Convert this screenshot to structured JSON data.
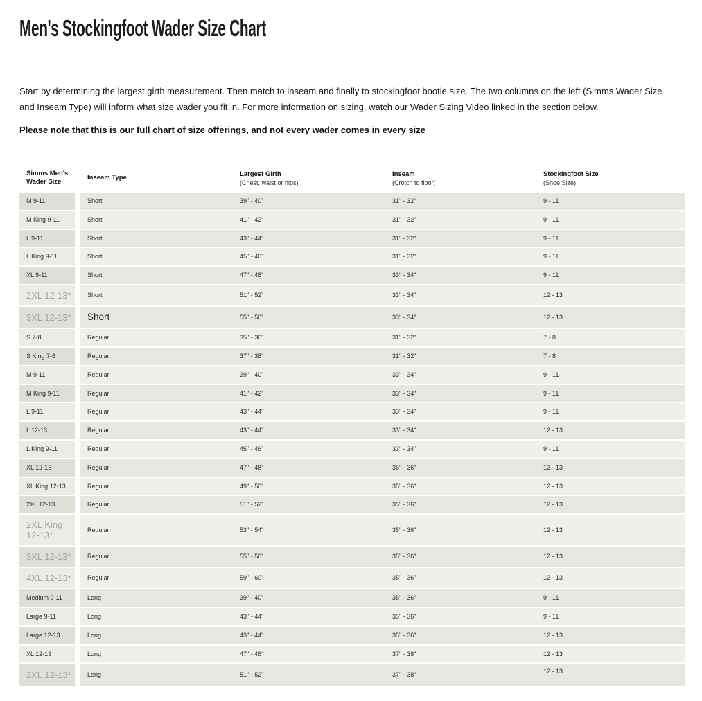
{
  "page": {
    "title": "Men's Stockingfoot Wader Size Chart",
    "intro": "Start by determining the largest girth measurement. Then match to inseam and finally to stockingfoot bootie size. The two columns on the left (Simms Wader Size and Inseam Type) will inform what size wader you fit in. For more information on sizing, watch our Wader Sizing Video linked in the section below.",
    "note": "Please note that this is our full chart of size offerings, and not every wader comes in every size"
  },
  "colors": {
    "row_dark": "#e7e6e0",
    "row_light": "#f0efec",
    "size_col_dark": "#e0dfd7",
    "size_col_light": "#ecebe6",
    "muted_text": "#a6a59c",
    "body_text": "#2e2e2c"
  },
  "table": {
    "columns": [
      {
        "label": "Simms Men's Wader Size",
        "sub": ""
      },
      {
        "label": "Inseam Type",
        "sub": ""
      },
      {
        "label": "Largest Girth",
        "sub": "(Chest, waist or hips)"
      },
      {
        "label": "Inseam",
        "sub": "(Crotch to floor)"
      },
      {
        "label": "Stockingfoot Size",
        "sub": "(Shoe Size)"
      }
    ],
    "rows": [
      {
        "wader_size": "M 9-11",
        "inseam_type": "Short",
        "largest_girth": "39\" - 40\"",
        "inseam": "31\" - 32\"",
        "stockingfoot_size": "9 - 11",
        "muted": false,
        "inseam_big": false,
        "tall": false
      },
      {
        "wader_size": "M King 9-11",
        "inseam_type": "Short",
        "largest_girth": "41\" - 42\"",
        "inseam": "31\" - 32\"",
        "stockingfoot_size": "9 - 11",
        "muted": false,
        "inseam_big": false,
        "tall": false
      },
      {
        "wader_size": "L 9-11",
        "inseam_type": "Short",
        "largest_girth": "43\" - 44\"",
        "inseam": "31\" - 32\"",
        "stockingfoot_size": "9 - 11",
        "muted": false,
        "inseam_big": false,
        "tall": false
      },
      {
        "wader_size": "L King 9-11",
        "inseam_type": "Short",
        "largest_girth": "45\" - 46\"",
        "inseam": "31\" - 32\"",
        "stockingfoot_size": "9 - 11",
        "muted": false,
        "inseam_big": false,
        "tall": false
      },
      {
        "wader_size": "XL 9-11",
        "inseam_type": "Short",
        "largest_girth": "47\" - 48\"",
        "inseam": "33\" - 34\"",
        "stockingfoot_size": "9 - 11",
        "muted": false,
        "inseam_big": false,
        "tall": false
      },
      {
        "wader_size": "2XL 12-13*",
        "inseam_type": "Short",
        "largest_girth": "51\" - 52\"",
        "inseam": "33\" - 34\"",
        "stockingfoot_size": "12 - 13",
        "muted": true,
        "inseam_big": false,
        "tall": false
      },
      {
        "wader_size": "3XL 12-13*",
        "inseam_type": "Short",
        "largest_girth": "55\" - 56\"",
        "inseam": "33\" - 34\"",
        "stockingfoot_size": "12 - 13",
        "muted": true,
        "inseam_big": true,
        "tall": false
      },
      {
        "wader_size": "S 7-8",
        "inseam_type": "Regular",
        "largest_girth": "35\" - 36\"",
        "inseam": "31\" - 32\"",
        "stockingfoot_size": "7 - 8",
        "muted": false,
        "inseam_big": false,
        "tall": false
      },
      {
        "wader_size": "S King 7-8",
        "inseam_type": "Regular",
        "largest_girth": "37\" - 38\"",
        "inseam": "31\" - 32\"",
        "stockingfoot_size": "7 - 8",
        "muted": false,
        "inseam_big": false,
        "tall": false
      },
      {
        "wader_size": "M 9-11",
        "inseam_type": "Regular",
        "largest_girth": "39\" - 40\"",
        "inseam": "33\" - 34\"",
        "stockingfoot_size": "9 - 11",
        "muted": false,
        "inseam_big": false,
        "tall": false
      },
      {
        "wader_size": "M King 9-11",
        "inseam_type": "Regular",
        "largest_girth": "41\" - 42\"",
        "inseam": "33\" - 34\"",
        "stockingfoot_size": "9 - 11",
        "muted": false,
        "inseam_big": false,
        "tall": false
      },
      {
        "wader_size": "L 9-11",
        "inseam_type": "Regular",
        "largest_girth": "43\" - 44\"",
        "inseam": "33\" - 34\"",
        "stockingfoot_size": "9 - 11",
        "muted": false,
        "inseam_big": false,
        "tall": false
      },
      {
        "wader_size": "L 12-13",
        "inseam_type": "Regular",
        "largest_girth": "43\" - 44\"",
        "inseam": "33\" - 34\"",
        "stockingfoot_size": "12 - 13",
        "muted": false,
        "inseam_big": false,
        "tall": false
      },
      {
        "wader_size": "L King 9-11",
        "inseam_type": "Regular",
        "largest_girth": "45\" - 46\"",
        "inseam": "33\" - 34\"",
        "stockingfoot_size": "9 - 11",
        "muted": false,
        "inseam_big": false,
        "tall": false
      },
      {
        "wader_size": "XL 12-13",
        "inseam_type": "Regular",
        "largest_girth": "47\" - 48\"",
        "inseam": "35\" - 36\"",
        "stockingfoot_size": "12 - 13",
        "muted": false,
        "inseam_big": false,
        "tall": false
      },
      {
        "wader_size": "XL King 12-13",
        "inseam_type": "Regular",
        "largest_girth": "49\" - 50\"",
        "inseam": "35\" - 36\"",
        "stockingfoot_size": "12 - 13",
        "muted": false,
        "inseam_big": false,
        "tall": false
      },
      {
        "wader_size": "2XL 12-13",
        "inseam_type": "Regular",
        "largest_girth": "51\" - 52\"",
        "inseam": "35\" - 36\"",
        "stockingfoot_size": "12 - 13",
        "muted": false,
        "inseam_big": false,
        "tall": false
      },
      {
        "wader_size": "2XL King 12-13*",
        "inseam_type": "Regular",
        "largest_girth": "53\" - 54\"",
        "inseam": "35\" - 36\"",
        "stockingfoot_size": "12 - 13",
        "muted": true,
        "inseam_big": false,
        "tall": false
      },
      {
        "wader_size": "3XL 12-13*",
        "inseam_type": "Regular",
        "largest_girth": "55\" - 56\"",
        "inseam": "35\" - 36\"",
        "stockingfoot_size": "12 - 13",
        "muted": true,
        "inseam_big": false,
        "tall": false
      },
      {
        "wader_size": "4XL 12-13*",
        "inseam_type": "Regular",
        "largest_girth": "59\" - 60\"",
        "inseam": "35\" - 36\"",
        "stockingfoot_size": "12 - 13",
        "muted": true,
        "inseam_big": false,
        "tall": false
      },
      {
        "wader_size": "Medium 9-11",
        "inseam_type": "Long",
        "largest_girth": "39\" - 40\"",
        "inseam": "35\" - 36\"",
        "stockingfoot_size": "9 - 11",
        "muted": false,
        "inseam_big": false,
        "tall": false
      },
      {
        "wader_size": "Large 9-11",
        "inseam_type": "Long",
        "largest_girth": "43\" - 44\"",
        "inseam": "35\" - 36\"",
        "stockingfoot_size": "9 - 11",
        "muted": false,
        "inseam_big": false,
        "tall": false
      },
      {
        "wader_size": "Large 12-13",
        "inseam_type": "Long",
        "largest_girth": "43\" - 44\"",
        "inseam": "35\" - 36\"",
        "stockingfoot_size": "12 - 13",
        "muted": false,
        "inseam_big": false,
        "tall": false
      },
      {
        "wader_size": "XL 12-13",
        "inseam_type": "Long",
        "largest_girth": "47\" - 48\"",
        "inseam": "37\" - 38\"",
        "stockingfoot_size": "12 - 13",
        "muted": false,
        "inseam_big": false,
        "tall": false
      },
      {
        "wader_size": "2XL 12-13*",
        "inseam_type": "Long",
        "largest_girth": "51\" - 52\"",
        "inseam": "37\" - 38\"",
        "stockingfoot_size": "12 - 13",
        "muted": true,
        "inseam_big": false,
        "tall": true
      }
    ]
  }
}
